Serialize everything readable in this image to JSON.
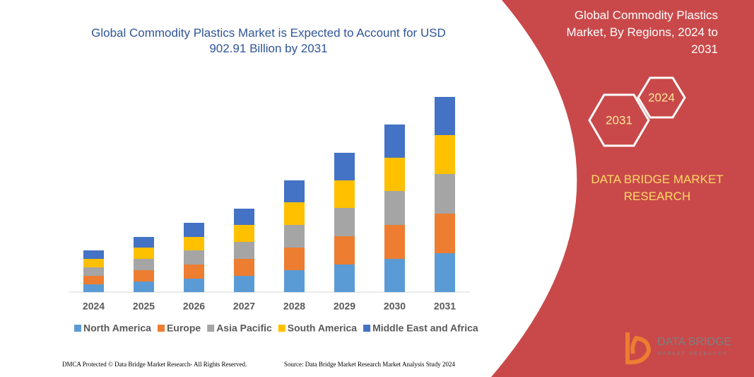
{
  "chart_data": {
    "type": "stacked-bar",
    "title": "Global Commodity Plastics Market is Expected to Account for USD 902.91 Billion by 2031",
    "categories": [
      "2024",
      "2025",
      "2026",
      "2027",
      "2028",
      "2029",
      "2030",
      "2031"
    ],
    "series": [
      {
        "name": "North America",
        "color": "#5b9bd5",
        "values": [
          11,
          15,
          19,
          23,
          31,
          39,
          47,
          55
        ]
      },
      {
        "name": "Europe",
        "color": "#ed7d31",
        "values": [
          12,
          16,
          20,
          24,
          32,
          40,
          48,
          56
        ]
      },
      {
        "name": "Asia Pacific",
        "color": "#a5a5a5",
        "values": [
          12,
          16,
          20,
          24,
          32,
          40,
          48,
          56
        ]
      },
      {
        "name": "South America",
        "color": "#ffc000",
        "values": [
          12,
          16,
          19,
          24,
          32,
          39,
          47,
          55
        ]
      },
      {
        "name": "Middle East and Africa",
        "color": "#4472c4",
        "values": [
          12,
          15,
          20,
          23,
          31,
          39,
          47,
          54
        ]
      }
    ],
    "ylim": [
      0,
      300
    ]
  },
  "panel": {
    "title": "Global Commodity Plastics Market, By Regions, 2024 to 2031",
    "hex_start": "2024",
    "hex_end": "2031",
    "brand": "DATA BRIDGE MARKET RESEARCH"
  },
  "logo": {
    "name": "DATA BRIDGE",
    "tagline": "MARKET RESEARCH"
  },
  "footer": {
    "left": "DMCA Protected © Data Bridge Market Research- All Rights Reserved.",
    "right": "Source: Data Bridge Market Research Market Analysis Study 2024"
  }
}
